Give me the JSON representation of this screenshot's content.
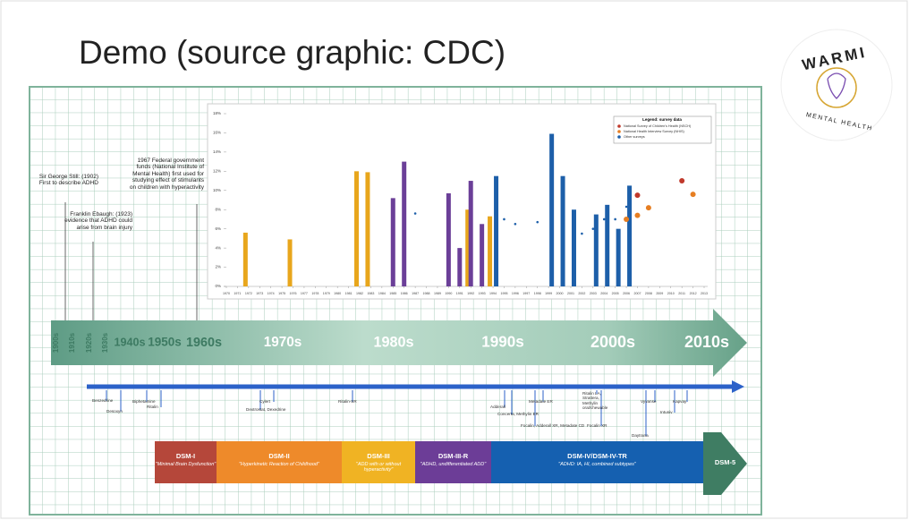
{
  "slide": {
    "title": "Demo (source graphic: CDC)",
    "logo": {
      "name": "WARMI",
      "tagline": "MENTAL HEALTH"
    },
    "annotations": [
      "Sir George Still: (1902) First to describe ADHD",
      "Franklin Ebaugh: (1923) evidence that ADHD could arise from brain injury",
      "1967 Federal government funds (National Institute of Mental Health) first used for studying effect of stimulants on children with hyperactivity"
    ],
    "decades": [
      "1900s",
      "1910s",
      "1920s",
      "1930s",
      "1940s",
      "1950s",
      "1960s",
      "1970s",
      "1980s",
      "1990s",
      "2000s",
      "2010s"
    ],
    "drugs": [
      "Benzedrine",
      "Desoxyn",
      "Biphetamine",
      "Ritalin",
      "Cylert",
      "Dextrostat, Dexedrine",
      "Ritalin-SR",
      "Adderall",
      "Metadate ER",
      "Concerta, Methylin ER",
      "Focalin, Adderall XR, Metadate CD",
      "Ritalin LA, Strattera, Methylin oral/chewable",
      "Focalin XR",
      "Daytrana",
      "Vyvanse",
      "Intuniv",
      "Kapvay"
    ],
    "dsm": [
      {
        "name": "DSM-I",
        "note": "\"Minimal Brain Dysfunction\""
      },
      {
        "name": "DSM-II",
        "note": "\"Hyperkinetic Reaction of Childhood\""
      },
      {
        "name": "DSM-III",
        "note": "\"ADD with or without hyperactivity\""
      },
      {
        "name": "DSM-III-R",
        "note": "\"ADHD, undifferentiated ADD\""
      },
      {
        "name": "DSM-IV/DSM-IV-TR",
        "note": "\"ADHD: IA, HI, combined subtypes\""
      },
      {
        "name": "DSM-5"
      }
    ]
  },
  "chart_data": {
    "type": "bar",
    "legend_title": "Legend: survey data",
    "legend": "upper right",
    "xlim": [
      1970,
      2013
    ],
    "xticks": [
      1970,
      1971,
      1972,
      1973,
      1974,
      1975,
      1976,
      1977,
      1978,
      1979,
      1980,
      1981,
      1982,
      1983,
      1984,
      1985,
      1986,
      1987,
      1988,
      1989,
      1990,
      1991,
      1992,
      1993,
      1994,
      1995,
      1996,
      1997,
      1998,
      1999,
      2000,
      2001,
      2002,
      2003,
      2004,
      2005,
      2006,
      2007,
      2008,
      2009,
      2010,
      2011,
      2012,
      2013
    ],
    "ylim": [
      0,
      18
    ],
    "yticks": [
      {
        "value": 0,
        "label": "0%"
      },
      {
        "value": 2,
        "label": "2%"
      },
      {
        "value": 4,
        "label": "4%"
      },
      {
        "value": 6,
        "label": "6%"
      },
      {
        "value": 8,
        "label": "8%"
      },
      {
        "value": 10,
        "label": "10%"
      },
      {
        "value": 12,
        "label": "12%"
      },
      {
        "value": 14,
        "label": "14%"
      },
      {
        "value": 16,
        "label": "16%"
      },
      {
        "value": 18,
        "label": "18%"
      }
    ],
    "series": [
      {
        "color": "#e8a61c",
        "mark": "bar",
        "x": [
          1972,
          1976,
          1982,
          1983,
          1992,
          1994
        ],
        "values": [
          5.6,
          4.9,
          12.0,
          11.9,
          8.0,
          7.3
        ]
      },
      {
        "color": "#6b3f98",
        "mark": "bar",
        "x": [
          1985,
          1986,
          1990,
          1991,
          1992,
          1993
        ],
        "values": [
          9.2,
          13.0,
          9.7,
          4.0,
          11.0,
          6.5
        ]
      },
      {
        "color": "#1d5fa9",
        "mark": "bar",
        "x": [
          1994,
          1999,
          2000,
          2001,
          2003,
          2004,
          2005,
          2006
        ],
        "values": [
          11.5,
          15.9,
          11.5,
          8.0,
          7.5,
          8.5,
          6.0,
          10.5
        ]
      },
      {
        "name": "National Survey of Children's Health (NSCH)",
        "color": "#c0392b",
        "mark": "dot",
        "x": [
          2007,
          2011
        ],
        "values": [
          9.5,
          11.0
        ]
      },
      {
        "name": "National Health Interview Survey (NHIS)",
        "color": "#e67e22",
        "mark": "dot",
        "x": [
          2006,
          2007,
          2008,
          2012
        ],
        "values": [
          7.0,
          7.4,
          8.2,
          9.6
        ]
      },
      {
        "name": "Other surveys",
        "color": "#1d5fa9",
        "mark": "dot",
        "x": [
          1987,
          1995,
          1996,
          1998,
          2002,
          2003,
          2004,
          2005,
          2006
        ],
        "values": [
          7.6,
          7.0,
          6.5,
          6.7,
          5.5,
          6.0,
          7.0,
          7.0,
          8.3
        ]
      }
    ]
  }
}
